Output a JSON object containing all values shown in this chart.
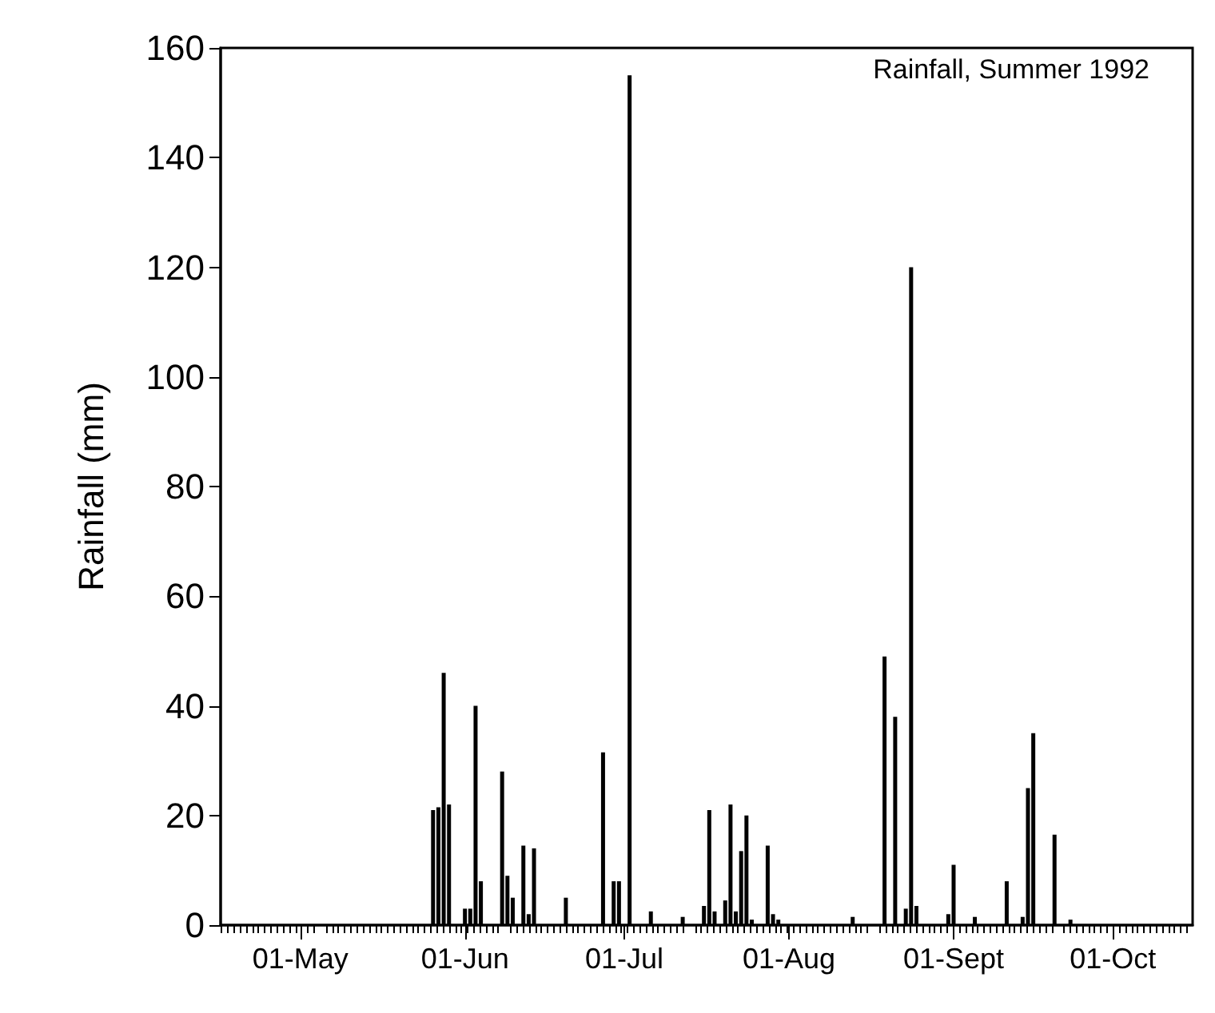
{
  "chart_data": {
    "type": "bar",
    "title": "Rainfall, Summer 1992",
    "ylabel": "Rainfall (mm)",
    "x": [
      "1992-05-26",
      "1992-05-27",
      "1992-05-28",
      "1992-05-29",
      "1992-06-01",
      "1992-06-02",
      "1992-06-03",
      "1992-06-04",
      "1992-06-08",
      "1992-06-09",
      "1992-06-10",
      "1992-06-12",
      "1992-06-13",
      "1992-06-14",
      "1992-06-20",
      "1992-06-27",
      "1992-06-29",
      "1992-06-30",
      "1992-07-02",
      "1992-07-06",
      "1992-07-12",
      "1992-07-16",
      "1992-07-17",
      "1992-07-18",
      "1992-07-20",
      "1992-07-21",
      "1992-07-22",
      "1992-07-23",
      "1992-07-24",
      "1992-07-25",
      "1992-07-28",
      "1992-07-29",
      "1992-07-30",
      "1992-08-13",
      "1992-08-19",
      "1992-08-21",
      "1992-08-23",
      "1992-08-24",
      "1992-08-25",
      "1992-08-31",
      "1992-09-01",
      "1992-09-05",
      "1992-09-11",
      "1992-09-14",
      "1992-09-15",
      "1992-09-16",
      "1992-09-20",
      "1992-09-23"
    ],
    "values": [
      21,
      21.5,
      46,
      22,
      3,
      3,
      40,
      8,
      28,
      9,
      5,
      14.5,
      2,
      14,
      5,
      31.5,
      8,
      8,
      155,
      2.5,
      1.5,
      3.5,
      21,
      2.5,
      4.5,
      22,
      2.5,
      13.5,
      20,
      1,
      14.5,
      2,
      1,
      1.5,
      49,
      38,
      3,
      120,
      3.5,
      2,
      11,
      1.5,
      8,
      1.5,
      25,
      35,
      16.5,
      1
    ],
    "color": "#000000",
    "xlim": [
      "1992-04-16",
      "1992-10-16"
    ],
    "xticks": [
      {
        "value": "1992-05-01",
        "label": "01-May"
      },
      {
        "value": "1992-06-01",
        "label": "01-Jun"
      },
      {
        "value": "1992-07-01",
        "label": "01-Jul"
      },
      {
        "value": "1992-08-01",
        "label": "01-Aug"
      },
      {
        "value": "1992-09-01",
        "label": "01-Sept"
      },
      {
        "value": "1992-10-01",
        "label": "01-Oct"
      }
    ],
    "ylim": [
      0,
      160
    ],
    "yticks": [
      0,
      20,
      40,
      60,
      80,
      100,
      120,
      140,
      160
    ]
  }
}
